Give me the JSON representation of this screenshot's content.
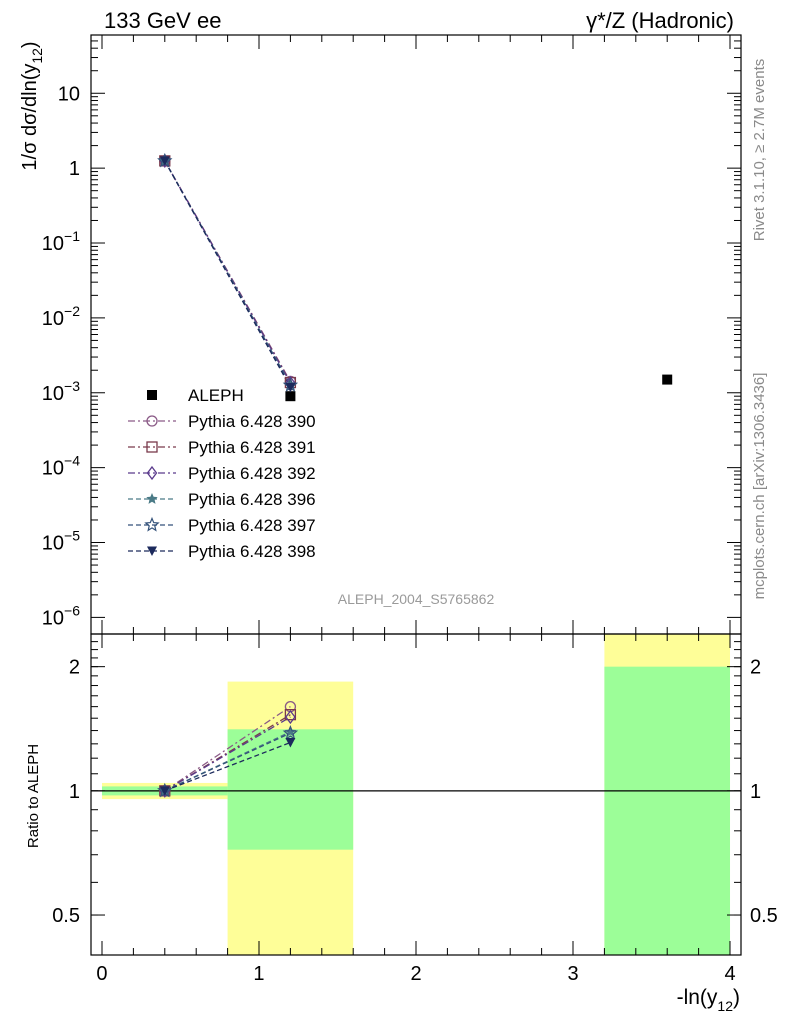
{
  "header": {
    "left_title": "133 GeV ee",
    "right_title": "γ*/Z (Hadronic)"
  },
  "side_labels": {
    "rivet": "Rivet 3.1.10, ≥ 2.7M events",
    "mcplots": "mcplots.cern.ch [arXiv:1306.3436]"
  },
  "watermark": "ALEPH_2004_S5765862",
  "chart_data": [
    {
      "type": "scatter",
      "panel": "main",
      "title": "",
      "xlabel": "-ln(y12)",
      "ylabel": "1/σ dσ/dln(y12)",
      "yscale": "log",
      "xlim": [
        -0.07,
        4.07
      ],
      "ylim": [
        6e-07,
        60
      ],
      "x_ticks": [
        0,
        1,
        2,
        3,
        4
      ],
      "y_ticks": [
        {
          "value": 1e-06,
          "base": "10",
          "exp": "−6"
        },
        {
          "value": 1e-05,
          "base": "10",
          "exp": "−5"
        },
        {
          "value": 0.0001,
          "base": "10",
          "exp": "−4"
        },
        {
          "value": 0.001,
          "base": "10",
          "exp": "−3"
        },
        {
          "value": 0.01,
          "base": "10",
          "exp": "−2"
        },
        {
          "value": 0.1,
          "base": "10",
          "exp": "−1"
        },
        {
          "value": 1,
          "base": "1",
          "exp": ""
        },
        {
          "value": 10,
          "base": "10",
          "exp": ""
        }
      ],
      "legend_position": "left",
      "series": [
        {
          "name": "ALEPH",
          "marker": "square-filled",
          "color": "#000000",
          "line": "none",
          "x": [
            1.2,
            3.6
          ],
          "y": [
            0.0009,
            0.0015
          ]
        },
        {
          "name": "Pythia 6.428 390",
          "marker": "circle-open",
          "color": "#8a5a86",
          "line": "dashdot",
          "x": [
            0.4,
            1.2
          ],
          "y": [
            1.25,
            0.00142
          ]
        },
        {
          "name": "Pythia 6.428 391",
          "marker": "square-open",
          "color": "#7a3a4c",
          "line": "dashdot",
          "x": [
            0.4,
            1.2
          ],
          "y": [
            1.25,
            0.00137
          ]
        },
        {
          "name": "Pythia 6.428 392",
          "marker": "diamond-open",
          "color": "#5a3a8c",
          "line": "dashdot",
          "x": [
            0.4,
            1.2
          ],
          "y": [
            1.25,
            0.00135
          ]
        },
        {
          "name": "Pythia 6.428 396",
          "marker": "star-filled",
          "color": "#4a7a86",
          "line": "dashed",
          "x": [
            0.4,
            1.2
          ],
          "y": [
            1.25,
            0.00128
          ]
        },
        {
          "name": "Pythia 6.428 397",
          "marker": "star-open",
          "color": "#34527a",
          "line": "dashed",
          "x": [
            0.4,
            1.2
          ],
          "y": [
            1.25,
            0.00126
          ]
        },
        {
          "name": "Pythia 6.428 398",
          "marker": "triangle-down-filled",
          "color": "#1c2a5c",
          "line": "dashed",
          "x": [
            0.4,
            1.2
          ],
          "y": [
            1.25,
            0.00118
          ]
        }
      ]
    },
    {
      "type": "scatter",
      "panel": "ratio",
      "title": "",
      "xlabel": "-ln(y12)",
      "ylabel": "Ratio to ALEPH",
      "yscale": "log",
      "xlim": [
        -0.07,
        4.07
      ],
      "ylim": [
        0.4,
        2.4
      ],
      "x_ticks": [
        0,
        1,
        2,
        3,
        4
      ],
      "y_ticks": [
        0.5,
        1,
        2
      ],
      "uncertainty_bands": [
        {
          "x0": 0.0,
          "x1": 0.8,
          "stat_lo": 0.975,
          "stat_hi": 1.025,
          "tot_lo": 0.955,
          "tot_hi": 1.045
        },
        {
          "x0": 0.8,
          "x1": 1.6,
          "stat_lo": 0.72,
          "stat_hi": 1.41,
          "tot_lo": 0.4,
          "tot_hi": 1.84
        },
        {
          "x0": 3.2,
          "x1": 4.0,
          "stat_lo": 0.4,
          "stat_hi": 2.0,
          "tot_lo": 0.4,
          "tot_hi": 2.4
        }
      ],
      "band_colors": {
        "stat": "#9cfe98",
        "total": "#fefe98"
      },
      "series": [
        {
          "name": "Pythia 6.428 390",
          "x": [
            0.4,
            1.2
          ],
          "y": [
            1.0,
            1.6
          ]
        },
        {
          "name": "Pythia 6.428 391",
          "x": [
            0.4,
            1.2
          ],
          "y": [
            1.0,
            1.53
          ]
        },
        {
          "name": "Pythia 6.428 392",
          "x": [
            0.4,
            1.2
          ],
          "y": [
            1.0,
            1.51
          ]
        },
        {
          "name": "Pythia 6.428 396",
          "x": [
            0.4,
            1.2
          ],
          "y": [
            1.0,
            1.39
          ]
        },
        {
          "name": "Pythia 6.428 397",
          "x": [
            0.4,
            1.2
          ],
          "y": [
            1.0,
            1.38
          ]
        },
        {
          "name": "Pythia 6.428 398",
          "x": [
            0.4,
            1.2
          ],
          "y": [
            1.0,
            1.31
          ]
        }
      ]
    }
  ]
}
